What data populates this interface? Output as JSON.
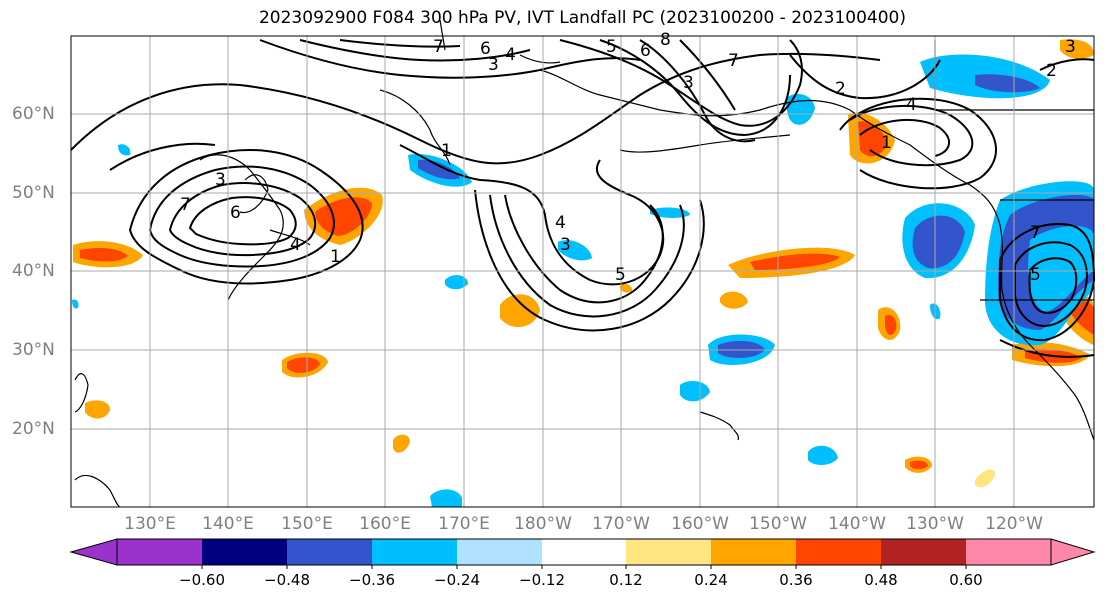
{
  "title": "2023092900 F084 300 hPa PV, IVT Landfall PC (2023100200 - 2023100400)",
  "lat_labels": [
    "60°N",
    "50°N",
    "40°N",
    "30°N",
    "20°N"
  ],
  "lon_labels": [
    "130°E",
    "140°E",
    "150°E",
    "160°E",
    "170°E",
    "180°W",
    "170°W",
    "160°W",
    "150°W",
    "140°W",
    "130°W",
    "120°W"
  ],
  "colorbar": {
    "ticks": [
      "−0.60",
      "−0.48",
      "−0.36",
      "−0.24",
      "−0.12",
      "0.12",
      "0.24",
      "0.36",
      "0.48",
      "0.60"
    ],
    "colors": [
      "#9933cc",
      "#000080",
      "#3355cc",
      "#00bfff",
      "#b0e2ff",
      "#ffffff",
      "#ffe680",
      "#ffa500",
      "#ff4500",
      "#b22222",
      "#ff88aa"
    ]
  },
  "contour_labels": [
    "7",
    "6",
    "3",
    "4",
    "5",
    "6",
    "8",
    "7",
    "3",
    "2",
    "4",
    "2",
    "3",
    "7",
    "6",
    "3",
    "4",
    "1",
    "4",
    "3",
    "5",
    "1",
    "1",
    "7",
    "5"
  ],
  "colors": {
    "grid": "#aaaaaa",
    "axis_text": "#7f7f7f"
  }
}
